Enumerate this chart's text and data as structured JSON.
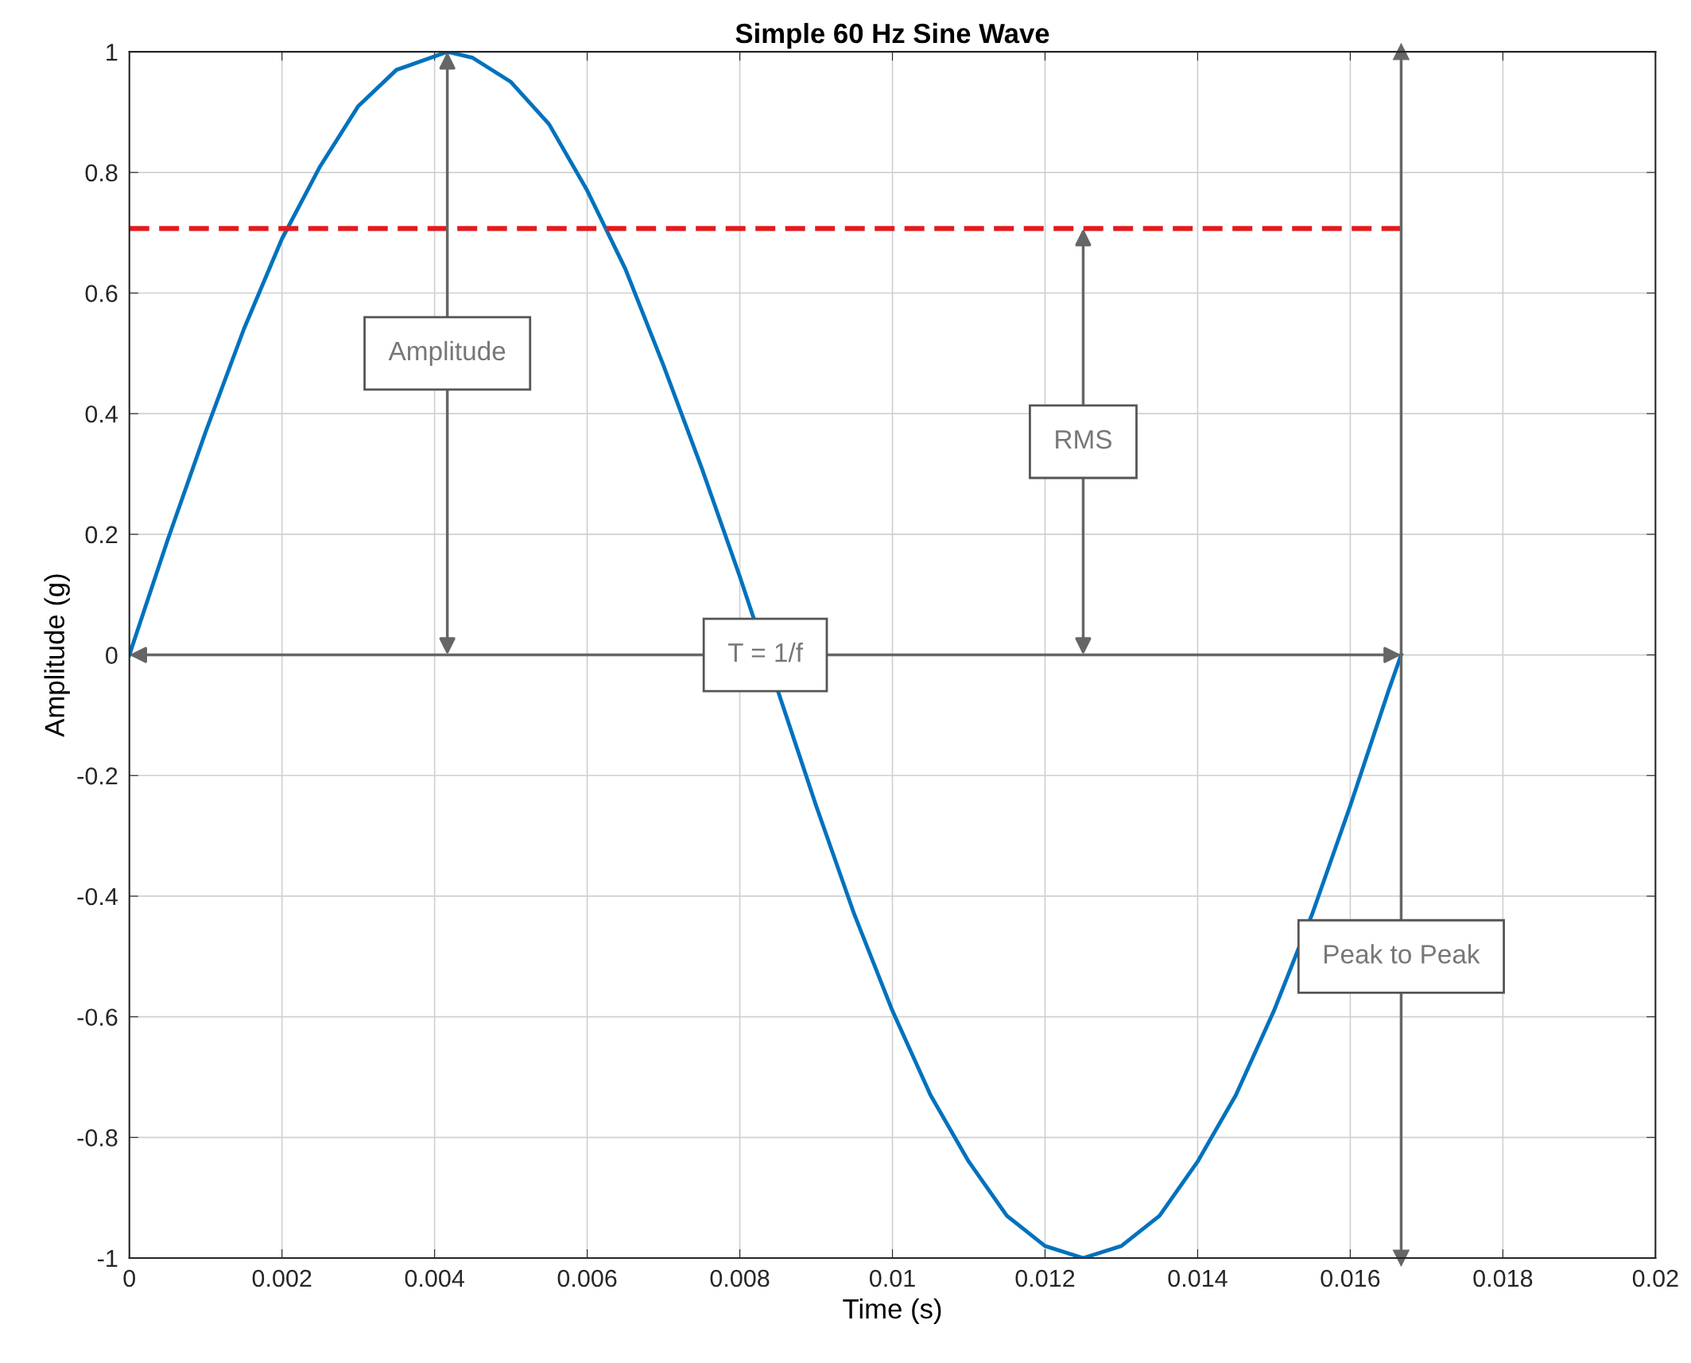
{
  "chart_data": {
    "type": "line",
    "title": "Simple 60 Hz Sine Wave",
    "xlabel": "Time (s)",
    "ylabel": "Amplitude (g)",
    "series": [
      {
        "color": "#0072bd",
        "x": [
          0,
          0.0005,
          0.001,
          0.0015,
          0.002,
          0.0025,
          0.003,
          0.0035,
          0.004167,
          0.0045,
          0.005,
          0.0055,
          0.006,
          0.0065,
          0.007,
          0.0075,
          0.008,
          0.0085,
          0.009,
          0.0095,
          0.01,
          0.0105,
          0.011,
          0.0115,
          0.012,
          0.0125,
          0.013,
          0.0135,
          0.014,
          0.0145,
          0.015,
          0.0155,
          0.016,
          0.0165,
          0.016667
        ],
        "values": [
          0,
          0.19,
          0.37,
          0.54,
          0.69,
          0.81,
          0.91,
          0.97,
          1.0,
          0.99,
          0.95,
          0.88,
          0.77,
          0.64,
          0.48,
          0.31,
          0.13,
          -0.06,
          -0.25,
          -0.43,
          -0.59,
          -0.73,
          -0.84,
          -0.93,
          -0.98,
          -1.0,
          -0.98,
          -0.93,
          -0.84,
          -0.73,
          -0.59,
          -0.43,
          -0.25,
          -0.06,
          0
        ]
      },
      {
        "color": "#e41a1c",
        "line_style": "dashed",
        "x": [
          0,
          0.016667
        ],
        "values": [
          0.707,
          0.707
        ]
      }
    ],
    "annotations": [
      "Amplitude",
      "RMS",
      "T = 1/f"
    ],
    "ref_lines": [
      {
        "axis": "x",
        "value": 0.016667,
        "label": "Peak to Peak",
        "color": "#666666"
      }
    ],
    "xlim": [
      0,
      0.02
    ],
    "xticks": [
      0,
      0.002,
      0.004,
      0.006,
      0.008,
      0.01,
      0.012,
      0.014,
      0.016,
      0.018,
      0.02
    ],
    "ylim": [
      -1,
      1
    ],
    "yticks": [
      -1,
      -0.8,
      -0.6,
      -0.4,
      -0.2,
      0,
      0.2,
      0.4,
      0.6,
      0.8,
      1
    ],
    "grid": true
  }
}
